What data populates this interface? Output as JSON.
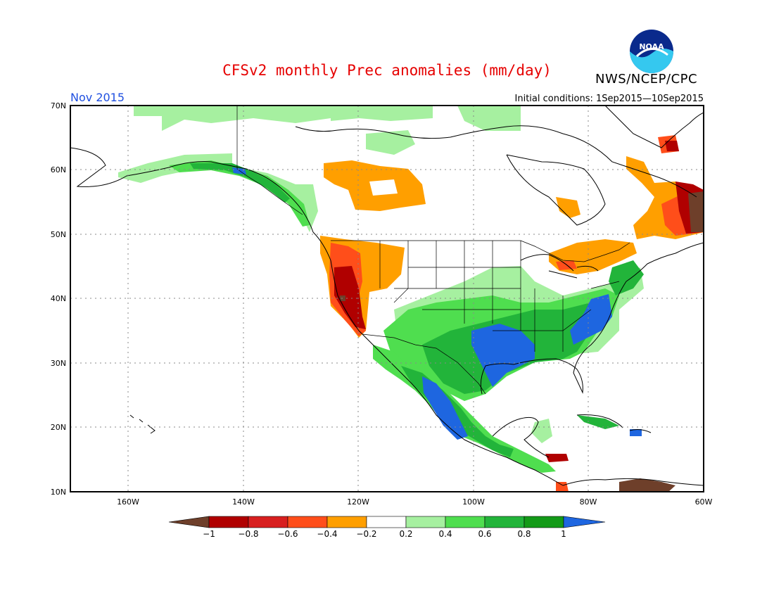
{
  "header": {
    "title": "CFSv2 monthly Prec anomalies (mm/day)",
    "agency": "NWS/NCEP/CPC",
    "logo_text": "NOAA",
    "month": "Nov 2015",
    "initial_conditions": "Initial conditions: 1Sep2015—10Sep2015"
  },
  "map": {
    "lat_ticks": [
      "70N",
      "60N",
      "50N",
      "40N",
      "30N",
      "20N",
      "10N"
    ],
    "lon_ticks": [
      "160W",
      "140W",
      "120W",
      "100W",
      "80W",
      "60W"
    ],
    "lon_range": [
      -170,
      -60
    ],
    "lat_range": [
      10,
      70
    ]
  },
  "colorbar": {
    "labels": [
      "−1",
      "−0.8",
      "−0.6",
      "−0.4",
      "−0.2",
      "0.2",
      "0.4",
      "0.6",
      "0.8",
      "1"
    ],
    "colors": [
      "#6e3f2a",
      "#b00000",
      "#d81f1f",
      "#ff4e1a",
      "#ff9f00",
      "#ffffff",
      "#a6f0a0",
      "#4fde4f",
      "#22b43a",
      "#139a18",
      "#1e66e0"
    ]
  }
}
